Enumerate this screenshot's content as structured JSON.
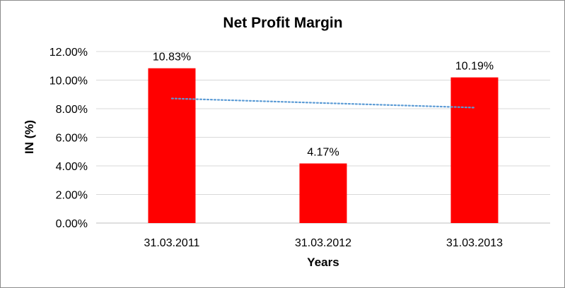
{
  "chart_data": {
    "type": "bar",
    "title": "Net Profit Margin",
    "xlabel": "Years",
    "ylabel": "IN (%)",
    "categories": [
      "31.03.2011",
      "31.03.2012",
      "31.03.2013"
    ],
    "series": [
      {
        "values": [
          10.83,
          4.17,
          10.19
        ],
        "data_labels": [
          "10.83%",
          "4.17%",
          "10.19%"
        ],
        "color": "#ff0000"
      }
    ],
    "trendline": {
      "type": "linear",
      "style": "dotted",
      "color": "#5b9bd5"
    },
    "ylim": [
      0,
      12
    ],
    "yticks": [
      0,
      2,
      4,
      6,
      8,
      10,
      12
    ],
    "ytick_labels": [
      "0.00%",
      "2.00%",
      "4.00%",
      "6.00%",
      "8.00%",
      "10.00%",
      "12.00%"
    ],
    "grid": true,
    "legend": "none"
  }
}
